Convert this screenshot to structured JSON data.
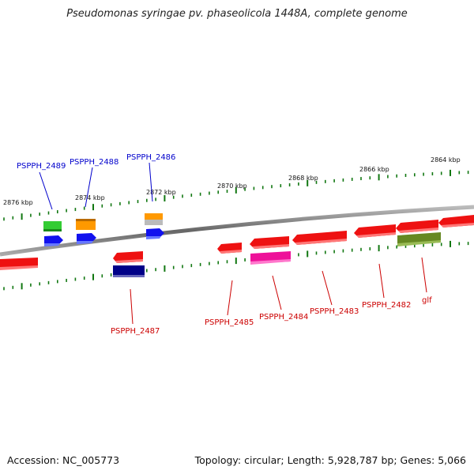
{
  "title": "Pseudomonas syringae pv. phaseolicola 1448A, complete genome",
  "footer": {
    "accession": "Accession: NC_005773",
    "info": "Topology: circular; Length: 5,928,787 bp; Genes: 5,066"
  },
  "scale_labels": {
    "kbp_2876": "2876 kbp",
    "kbp_2874": "2874 kbp",
    "kbp_2872": "2872 kbp",
    "kbp_2870": "2870 kbp",
    "kbp_2868": "2868 kbp",
    "kbp_2866": "2866 kbp",
    "kbp_2864": "2864 kbp"
  },
  "gene_labels": {
    "pspph_2489": "PSPPH_2489",
    "pspph_2488": "PSPPH_2488",
    "pspph_2486": "PSPPH_2486",
    "pspph_2487": "PSPPH_2487",
    "pspph_2485": "PSPPH_2485",
    "pspph_2484": "PSPPH_2484",
    "pspph_2483": "PSPPH_2483",
    "pspph_2482": "PSPPH_2482",
    "glf": "glf"
  },
  "colors": {
    "forward_label": "#0000cc",
    "reverse_label": "#cc0000",
    "gene_red": "#ee1111",
    "gene_green": "#33cc33",
    "gene_orange": "#ff9900",
    "gene_blue": "#1111ee",
    "gene_navy": "#000088",
    "gene_magenta": "#ee1199",
    "gene_olive": "#668822",
    "gene_grey": "#bbbbbb",
    "tick_green": "#117711",
    "backbone": "#777777"
  }
}
